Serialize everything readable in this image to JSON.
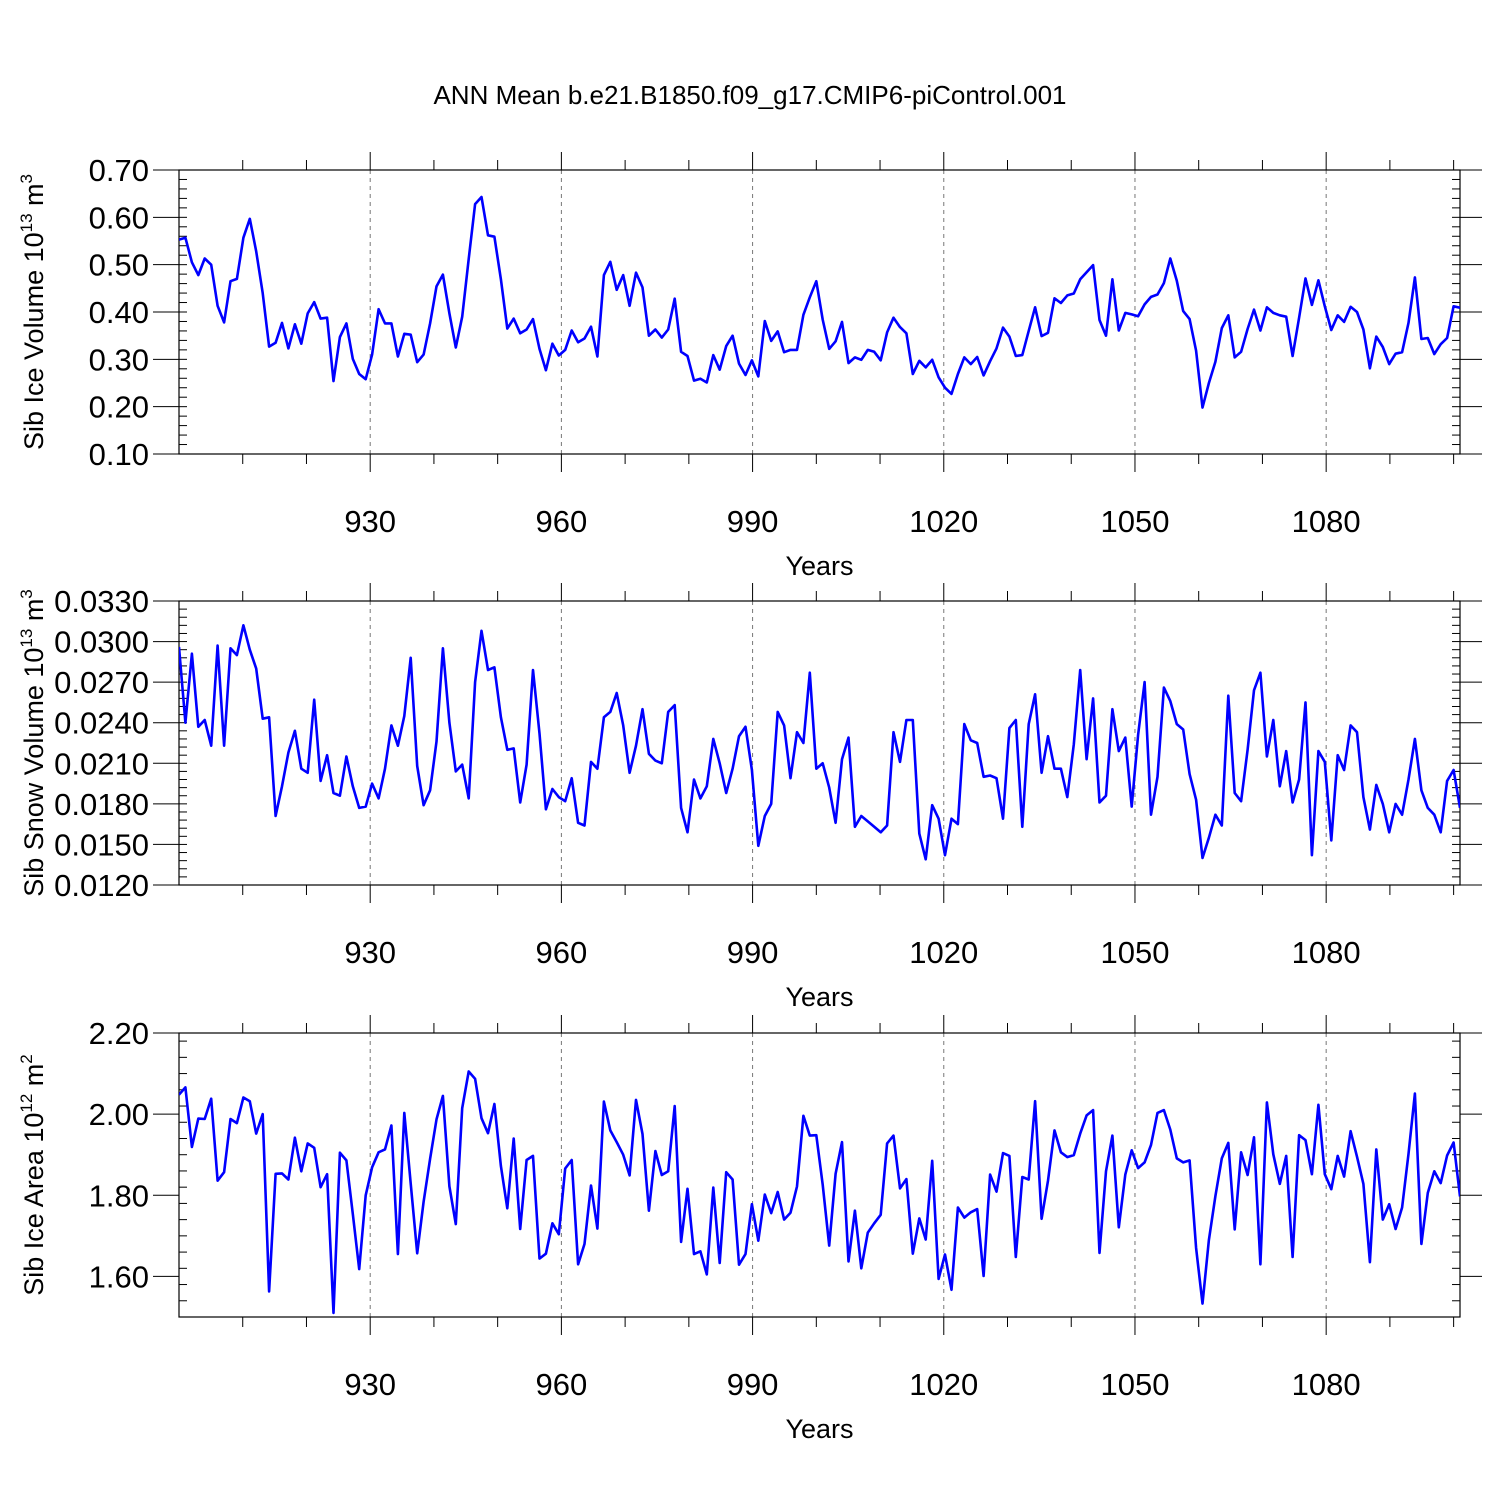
{
  "figure": {
    "title": "ANN Mean b.e21.B1850.f09_g17.CMIP6-piControl.001"
  },
  "style": {
    "line_color": "#0000ff",
    "grid_color": "#777777",
    "axis_color": "#000000"
  },
  "chart_data": [
    {
      "type": "line",
      "title": "",
      "xlabel": "Years",
      "ylabel_parts": [
        "Sib Ice Volume 10",
        "13",
        " m",
        "3"
      ],
      "xlim": [
        900,
        1101
      ],
      "ylim": [
        0.1,
        0.7
      ],
      "xticks": [
        930,
        960,
        990,
        1020,
        1050,
        1080
      ],
      "xtick_labels": [
        "930",
        "960",
        "990",
        "1020",
        "1050",
        "1080"
      ],
      "yticks": [
        0.1,
        0.2,
        0.3,
        0.4,
        0.5,
        0.6,
        0.7
      ],
      "ytick_labels": [
        "0.10",
        "0.20",
        "0.30",
        "0.40",
        "0.50",
        "0.60",
        "0.70"
      ],
      "grid": "x-dashed",
      "x_start": 900,
      "x_end": 1101,
      "values": [
        0.553,
        0.557,
        0.505,
        0.478,
        0.513,
        0.5,
        0.413,
        0.378,
        0.465,
        0.47,
        0.557,
        0.597,
        0.528,
        0.44,
        0.327,
        0.335,
        0.377,
        0.323,
        0.374,
        0.333,
        0.397,
        0.421,
        0.386,
        0.388,
        0.254,
        0.347,
        0.376,
        0.301,
        0.269,
        0.258,
        0.31,
        0.406,
        0.376,
        0.376,
        0.306,
        0.354,
        0.352,
        0.294,
        0.31,
        0.376,
        0.454,
        0.479,
        0.397,
        0.325,
        0.39,
        0.512,
        0.628,
        0.643,
        0.562,
        0.559,
        0.469,
        0.365,
        0.386,
        0.355,
        0.363,
        0.385,
        0.322,
        0.277,
        0.333,
        0.308,
        0.32,
        0.361,
        0.336,
        0.344,
        0.369,
        0.306,
        0.478,
        0.506,
        0.447,
        0.478,
        0.413,
        0.483,
        0.452,
        0.35,
        0.363,
        0.346,
        0.363,
        0.428,
        0.316,
        0.307,
        0.255,
        0.259,
        0.251,
        0.309,
        0.278,
        0.328,
        0.35,
        0.291,
        0.267,
        0.298,
        0.264,
        0.381,
        0.339,
        0.359,
        0.315,
        0.32,
        0.32,
        0.394,
        0.431,
        0.465,
        0.384,
        0.322,
        0.338,
        0.379,
        0.292,
        0.304,
        0.299,
        0.32,
        0.316,
        0.298,
        0.357,
        0.388,
        0.368,
        0.355,
        0.269,
        0.297,
        0.283,
        0.299,
        0.262,
        0.24,
        0.227,
        0.269,
        0.304,
        0.29,
        0.305,
        0.266,
        0.296,
        0.323,
        0.367,
        0.348,
        0.307,
        0.309,
        0.36,
        0.41,
        0.349,
        0.356,
        0.429,
        0.419,
        0.435,
        0.439,
        0.469,
        0.484,
        0.499,
        0.383,
        0.35,
        0.469,
        0.361,
        0.398,
        0.395,
        0.391,
        0.416,
        0.432,
        0.437,
        0.461,
        0.513,
        0.466,
        0.402,
        0.385,
        0.318,
        0.198,
        0.25,
        0.295,
        0.366,
        0.393,
        0.304,
        0.316,
        0.364,
        0.405,
        0.361,
        0.41,
        0.398,
        0.393,
        0.39,
        0.307,
        0.388,
        0.471,
        0.415,
        0.467,
        0.412,
        0.362,
        0.393,
        0.379,
        0.411,
        0.4,
        0.363,
        0.281,
        0.348,
        0.326,
        0.29,
        0.312,
        0.315,
        0.377,
        0.473,
        0.343,
        0.345,
        0.311,
        0.332,
        0.345,
        0.412,
        0.409
      ]
    },
    {
      "type": "line",
      "title": "",
      "xlabel": "Years",
      "ylabel_parts": [
        "Sib Snow Volume 10",
        "13",
        " m",
        "3"
      ],
      "xlim": [
        900,
        1101
      ],
      "ylim": [
        0.012,
        0.033
      ],
      "xticks": [
        930,
        960,
        990,
        1020,
        1050,
        1080
      ],
      "xtick_labels": [
        "930",
        "960",
        "990",
        "1020",
        "1050",
        "1080"
      ],
      "yticks": [
        0.012,
        0.015,
        0.018,
        0.021,
        0.024,
        0.027,
        0.03,
        0.033
      ],
      "ytick_labels": [
        "0.0120",
        "0.0150",
        "0.0180",
        "0.0210",
        "0.0240",
        "0.0270",
        "0.0300",
        "0.0330"
      ],
      "grid": "x-dashed",
      "x_start": 900,
      "x_end": 1101,
      "values": [
        0.0296,
        0.024,
        0.0291,
        0.0237,
        0.0242,
        0.0223,
        0.0297,
        0.0223,
        0.0295,
        0.029,
        0.0312,
        0.0294,
        0.028,
        0.0243,
        0.0244,
        0.0171,
        0.0193,
        0.0218,
        0.0234,
        0.0206,
        0.0203,
        0.0257,
        0.0197,
        0.0216,
        0.0188,
        0.0186,
        0.0215,
        0.0193,
        0.0177,
        0.0178,
        0.0195,
        0.0184,
        0.0206,
        0.0238,
        0.0223,
        0.0245,
        0.0288,
        0.0208,
        0.0179,
        0.019,
        0.0226,
        0.0295,
        0.024,
        0.0204,
        0.0209,
        0.0184,
        0.027,
        0.0308,
        0.0279,
        0.0281,
        0.0244,
        0.022,
        0.0221,
        0.0181,
        0.0209,
        0.0279,
        0.0232,
        0.0176,
        0.0191,
        0.0185,
        0.0182,
        0.0199,
        0.0166,
        0.0164,
        0.0211,
        0.0206,
        0.0244,
        0.0248,
        0.0262,
        0.0238,
        0.0203,
        0.0223,
        0.025,
        0.0217,
        0.0212,
        0.021,
        0.0248,
        0.0253,
        0.0177,
        0.0159,
        0.0198,
        0.0184,
        0.0193,
        0.0228,
        0.021,
        0.0188,
        0.0206,
        0.023,
        0.0237,
        0.0205,
        0.0149,
        0.0171,
        0.018,
        0.0248,
        0.0238,
        0.0199,
        0.0233,
        0.0225,
        0.0277,
        0.0206,
        0.021,
        0.0192,
        0.0166,
        0.0213,
        0.0229,
        0.0163,
        0.0171,
        0.0167,
        0.0163,
        0.0159,
        0.0164,
        0.0233,
        0.0211,
        0.0242,
        0.0242,
        0.0158,
        0.0139,
        0.0179,
        0.0169,
        0.0142,
        0.0169,
        0.0165,
        0.0239,
        0.0227,
        0.0225,
        0.02,
        0.0201,
        0.0199,
        0.0169,
        0.0236,
        0.0242,
        0.0163,
        0.0239,
        0.0261,
        0.0203,
        0.023,
        0.0206,
        0.0206,
        0.0185,
        0.0224,
        0.0279,
        0.0213,
        0.0258,
        0.0181,
        0.0186,
        0.025,
        0.0219,
        0.0229,
        0.0178,
        0.0231,
        0.027,
        0.0172,
        0.02,
        0.0266,
        0.0256,
        0.0239,
        0.0235,
        0.0202,
        0.0183,
        0.014,
        0.0155,
        0.0172,
        0.0164,
        0.026,
        0.0188,
        0.0182,
        0.022,
        0.0264,
        0.0277,
        0.0215,
        0.0242,
        0.0193,
        0.0219,
        0.0181,
        0.0198,
        0.0255,
        0.0142,
        0.0219,
        0.0211,
        0.0153,
        0.0216,
        0.0205,
        0.0238,
        0.0233,
        0.0185,
        0.0161,
        0.0194,
        0.018,
        0.0159,
        0.018,
        0.0172,
        0.0198,
        0.0228,
        0.019,
        0.0177,
        0.0172,
        0.0159,
        0.0197,
        0.0205,
        0.0177
      ]
    },
    {
      "type": "line",
      "title": "",
      "xlabel": "Years",
      "ylabel_parts": [
        "Sib Ice Area 10",
        "12",
        " m",
        "2"
      ],
      "xlim": [
        900,
        1101
      ],
      "ylim": [
        1.5,
        2.2
      ],
      "xticks": [
        930,
        960,
        990,
        1020,
        1050,
        1080
      ],
      "xtick_labels": [
        "930",
        "960",
        "990",
        "1020",
        "1050",
        "1080"
      ],
      "yticks": [
        1.6,
        1.8,
        2.0,
        2.2
      ],
      "ytick_labels": [
        "1.60",
        "1.80",
        "2.00",
        "2.20"
      ],
      "grid": "x-dashed",
      "x_start": 900,
      "x_end": 1101,
      "values": [
        2.048,
        2.066,
        1.919,
        1.989,
        1.988,
        2.038,
        1.836,
        1.857,
        1.988,
        1.978,
        2.041,
        2.032,
        1.952,
        2.0,
        1.563,
        1.853,
        1.854,
        1.839,
        1.942,
        1.859,
        1.928,
        1.917,
        1.82,
        1.852,
        1.51,
        1.905,
        1.886,
        1.754,
        1.618,
        1.8,
        1.869,
        1.906,
        1.913,
        1.972,
        1.655,
        2.003,
        1.829,
        1.657,
        1.784,
        1.89,
        1.987,
        2.045,
        1.822,
        1.729,
        2.015,
        2.105,
        2.087,
        1.99,
        1.953,
        2.025,
        1.872,
        1.768,
        1.94,
        1.717,
        1.887,
        1.897,
        1.644,
        1.656,
        1.731,
        1.704,
        1.866,
        1.887,
        1.63,
        1.68,
        1.824,
        1.718,
        2.031,
        1.96,
        1.931,
        1.9,
        1.849,
        2.035,
        1.951,
        1.762,
        1.909,
        1.85,
        1.859,
        2.02,
        1.685,
        1.816,
        1.655,
        1.662,
        1.605,
        1.819,
        1.633,
        1.857,
        1.839,
        1.629,
        1.655,
        1.778,
        1.688,
        1.802,
        1.756,
        1.808,
        1.74,
        1.757,
        1.822,
        1.996,
        1.947,
        1.948,
        1.826,
        1.676,
        1.853,
        1.931,
        1.637,
        1.762,
        1.62,
        1.708,
        1.731,
        1.752,
        1.928,
        1.947,
        1.817,
        1.84,
        1.656,
        1.743,
        1.691,
        1.885,
        1.594,
        1.654,
        1.567,
        1.77,
        1.745,
        1.758,
        1.766,
        1.601,
        1.851,
        1.809,
        1.904,
        1.897,
        1.648,
        1.845,
        1.839,
        2.032,
        1.742,
        1.836,
        1.96,
        1.906,
        1.894,
        1.899,
        1.952,
        1.997,
        2.01,
        1.658,
        1.859,
        1.947,
        1.721,
        1.851,
        1.911,
        1.867,
        1.881,
        1.924,
        2.003,
        2.01,
        1.962,
        1.891,
        1.881,
        1.886,
        1.67,
        1.533,
        1.69,
        1.798,
        1.891,
        1.929,
        1.716,
        1.906,
        1.85,
        1.943,
        1.63,
        2.029,
        1.901,
        1.828,
        1.897,
        1.648,
        1.948,
        1.936,
        1.852,
        2.023,
        1.852,
        1.815,
        1.897,
        1.846,
        1.958,
        1.895,
        1.828,
        1.635,
        1.913,
        1.74,
        1.778,
        1.717,
        1.77,
        1.902,
        2.051,
        1.68,
        1.806,
        1.859,
        1.83,
        1.898,
        1.93,
        1.797
      ]
    }
  ]
}
